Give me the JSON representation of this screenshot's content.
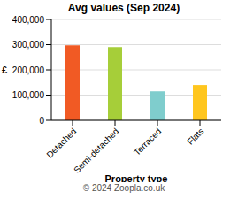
{
  "chart_data": {
    "type": "bar",
    "title": "Avg values (Sep 2024)",
    "x_label": "Property type",
    "y_label": "£",
    "annotations": [
      "© 2024 Zoopla.co.uk"
    ],
    "categories": [
      "Detached",
      "Semi-detached",
      "Terraced",
      "Flats"
    ],
    "values": [
      297000,
      290000,
      115000,
      140000
    ],
    "colors": [
      "#f15a24",
      "#a6ce39",
      "#7fcdcd",
      "#ffc61e"
    ],
    "ylim": [
      0,
      400000
    ],
    "yticks": [
      0,
      {
        "value": 100000,
        "label": "100,000"
      },
      {
        "value": 200000,
        "label": "200,000"
      },
      {
        "value": 300000,
        "label": "300,000"
      },
      {
        "value": 400000,
        "label": "400,000"
      }
    ],
    "grid": true
  }
}
